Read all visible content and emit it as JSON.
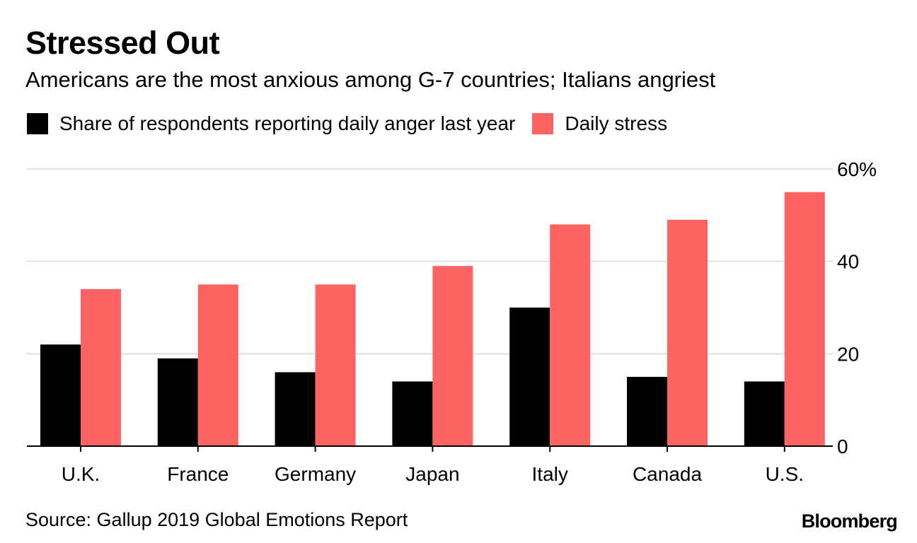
{
  "colors": {
    "anger": "#000000",
    "stress": "#ff6464",
    "grid": "#e0e0e0",
    "axis": "#000000",
    "text": "#000000"
  },
  "chart_data": {
    "type": "bar",
    "title": "Stressed Out",
    "subtitle": "Americans are the most anxious among G-7 countries; Italians angriest",
    "categories": [
      "U.K.",
      "France",
      "Germany",
      "Japan",
      "Italy",
      "Canada",
      "U.S."
    ],
    "series": [
      {
        "name": "Share of respondents reporting daily anger last year",
        "color": "#000000",
        "values": [
          22,
          19,
          16,
          14,
          30,
          15,
          14
        ]
      },
      {
        "name": "Daily stress",
        "color": "#ff6464",
        "values": [
          34,
          35,
          35,
          39,
          48,
          49,
          55
        ]
      }
    ],
    "ylim": [
      0,
      60
    ],
    "yticks": [
      0,
      20,
      40,
      60
    ],
    "ytick_labels": [
      "0",
      "20",
      "40",
      "60%"
    ],
    "xlabel": "",
    "ylabel": "",
    "legend": "top-left",
    "grid": true
  },
  "footer": {
    "source": "Source: Gallup 2019 Global Emotions Report",
    "brand": "Bloomberg"
  }
}
